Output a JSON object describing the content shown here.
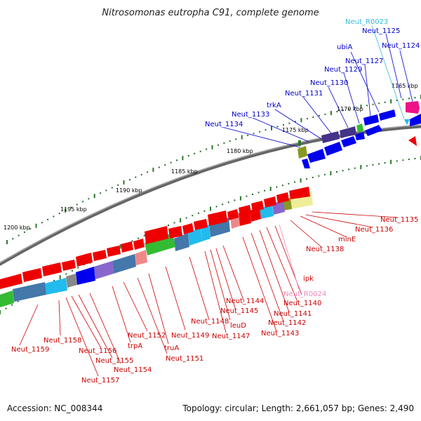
{
  "title": "Nitrosomonas eutropha C91, complete genome",
  "footer": {
    "accession": "Accession: NC_008344",
    "summary": "Topology: circular; Length: 2,661,057 bp; Genes: 2,490"
  },
  "scale_labels": [
    "1165 kbp",
    "1170 kbp",
    "1175 kbp",
    "1180 kbp",
    "1185 kbp",
    "1190 kbp",
    "1195 kbp",
    "1200 kbp"
  ],
  "upper_labels": [
    "Neut_R0023",
    "Neut_1125",
    "Neut_1124",
    "ubiA",
    "Neut_1127",
    "Neut_1129",
    "Neut_1130",
    "Neut_1131",
    "trkA",
    "Neut_1133",
    "Neut_1134"
  ],
  "lower_labels": [
    "Neut_1135",
    "Neut_1136",
    "minE",
    "Neut_1138",
    "ipk",
    "Neut_R0024",
    "Neut_1140",
    "Neut_1141",
    "Neut_1142",
    "Neut_1143",
    "Neut_1144",
    "Neut_1145",
    "leuD",
    "Neut_1147",
    "Neut_1148",
    "Neut_1149",
    "truA",
    "Neut_1151",
    "Neut_1152",
    "trpA",
    "Neut_1154",
    "Neut_1155",
    "Neut_1156",
    "Neut_1157",
    "Neut_1158",
    "Neut_1159"
  ],
  "colors": {
    "forward_label": "#0000cc",
    "reverse_label": "#cc0000",
    "rna_label": "#33bbdd",
    "rna_pink": "#ee88bb",
    "scale_tick": "#2a7a2a",
    "backbone": "#888888",
    "gene_red": "#ee0000",
    "gene_blue": "#0000ee",
    "gene_purple": "#443388",
    "gene_steel": "#4477aa",
    "gene_cyan": "#22bbee",
    "gene_green": "#33bb33",
    "gene_magenta": "#ee1188",
    "gene_yellow": "#eeee99",
    "gene_olive": "#889922",
    "gene_pink": "#ee8888"
  }
}
